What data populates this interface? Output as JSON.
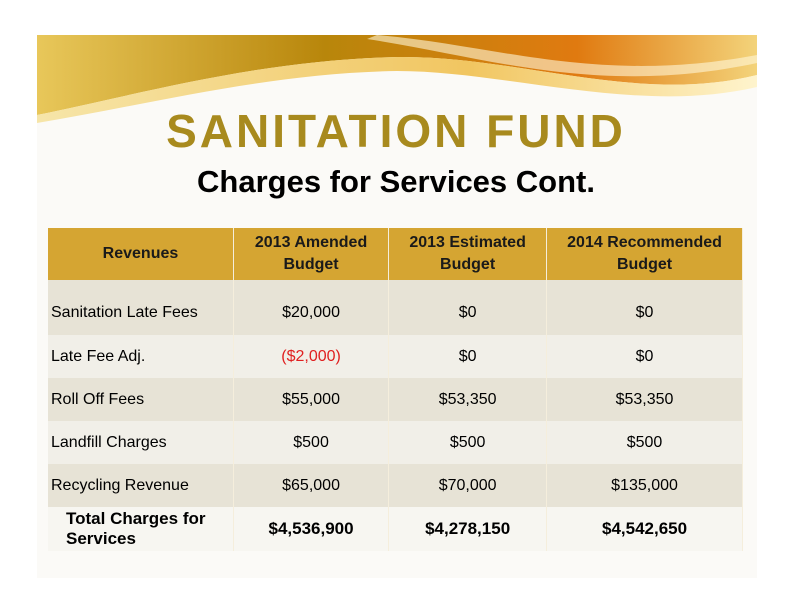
{
  "title": "SANITATION FUND",
  "subtitle": "Charges for Services Cont.",
  "table": {
    "header": [
      "Revenues",
      "2013 Amended Budget",
      "2013 Estimated Budget",
      "2014 Recommended Budget"
    ],
    "rows": [
      [
        "Sanitation Late Fees",
        "$20,000",
        "$0",
        "$0"
      ],
      [
        "Late Fee Adj.",
        "($2,000)",
        "$0",
        "$0"
      ],
      [
        "Roll Off Fees",
        "$55,000",
        "$53,350",
        "$53,350"
      ],
      [
        "Landfill Charges",
        "$500",
        "$500",
        "$500"
      ],
      [
        "Recycling Revenue",
        "$65,000",
        "$70,000",
        "$135,000"
      ]
    ],
    "total": [
      "Total Charges for Services",
      "$4,536,900",
      "$4,278,150",
      "$4,542,650"
    ]
  }
}
